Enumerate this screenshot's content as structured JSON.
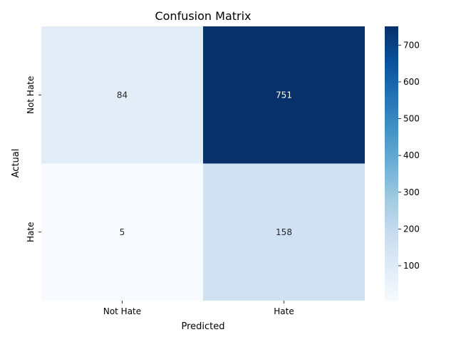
{
  "chart_data": {
    "type": "heatmap",
    "title": "Confusion Matrix",
    "xlabel": "Predicted",
    "ylabel": "Actual",
    "x_categories": [
      "Not Hate",
      "Hate"
    ],
    "y_categories": [
      "Not Hate",
      "Hate"
    ],
    "values": [
      [
        84,
        751
      ],
      [
        5,
        158
      ]
    ],
    "colormap": "Blues",
    "colorbar": {
      "min": 5,
      "max": 751,
      "ticks": [
        100,
        200,
        300,
        400,
        500,
        600,
        700
      ]
    }
  }
}
